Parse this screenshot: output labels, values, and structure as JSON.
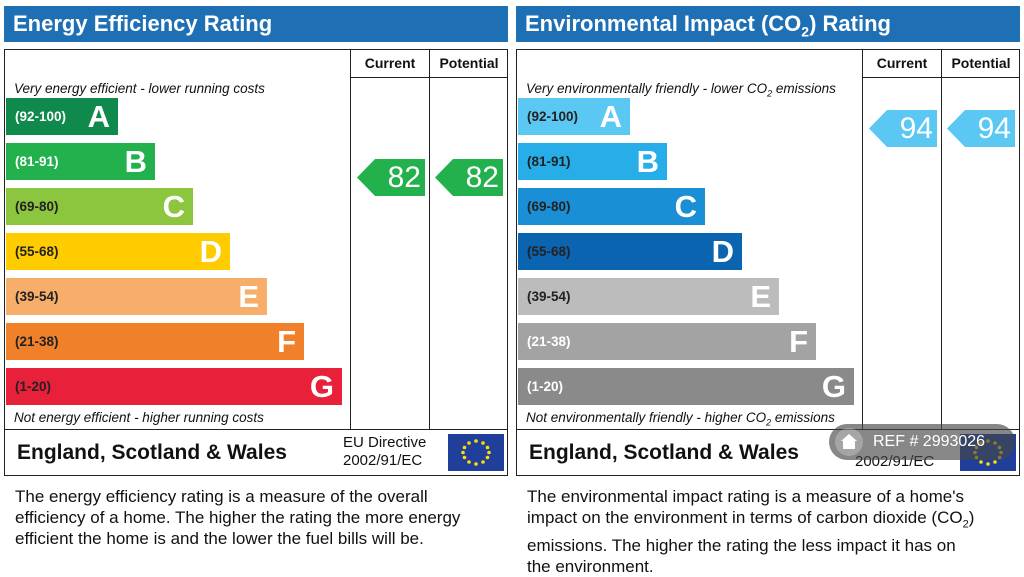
{
  "colors": {
    "title_bar": "#1f6fb4",
    "energy_bands": [
      "#0f8a4c",
      "#22b14c",
      "#8cc63f",
      "#ffcc00",
      "#f7ae6a",
      "#f0802a",
      "#e8203a"
    ],
    "env_bands": [
      "#5bc8f4",
      "#27aee8",
      "#1a8fd6",
      "#0b64b0",
      "#bcbcbc",
      "#a3a3a3",
      "#8a8a8a"
    ],
    "eu_flag": "#1f3f9a"
  },
  "energy": {
    "title": "Energy Efficiency Rating",
    "col_current": "Current",
    "col_potential": "Potential",
    "top_note": "Very energy efficient - lower running costs",
    "bottom_note": "Not energy efficient - higher running costs",
    "bands": [
      {
        "range": "(92-100)",
        "letter": "A"
      },
      {
        "range": "(81-91)",
        "letter": "B"
      },
      {
        "range": "(69-80)",
        "letter": "C"
      },
      {
        "range": "(55-68)",
        "letter": "D"
      },
      {
        "range": "(39-54)",
        "letter": "E"
      },
      {
        "range": "(21-38)",
        "letter": "F"
      },
      {
        "range": "(1-20)",
        "letter": "G"
      }
    ],
    "current": "82",
    "potential": "82",
    "current_band": "B",
    "potential_band": "B",
    "country": "England, Scotland & Wales",
    "directive_line1": "EU Directive",
    "directive_line2": "2002/91/EC",
    "description": "The energy efficiency rating is a measure of the overall efficiency of a home. The higher the rating the more energy efficient the home is and the lower the fuel bills will be."
  },
  "environment": {
    "title_pre": "Environmental Impact (CO",
    "title_sub": "2",
    "title_post": ") Rating",
    "col_current": "Current",
    "col_potential": "Potential",
    "top_note_pre": "Very environmentally friendly - lower CO",
    "top_note_sub": "2",
    "top_note_post": " emissions",
    "bottom_note_pre": "Not environmentally friendly - higher CO",
    "bottom_note_sub": "2",
    "bottom_note_post": " emissions",
    "bands": [
      {
        "range": "(92-100)",
        "letter": "A"
      },
      {
        "range": "(81-91)",
        "letter": "B"
      },
      {
        "range": "(69-80)",
        "letter": "C"
      },
      {
        "range": "(55-68)",
        "letter": "D"
      },
      {
        "range": "(39-54)",
        "letter": "E"
      },
      {
        "range": "(21-38)",
        "letter": "F"
      },
      {
        "range": "(1-20)",
        "letter": "G"
      }
    ],
    "current": "94",
    "potential": "94",
    "current_band": "A",
    "potential_band": "A",
    "country": "England, Scotland & Wales",
    "directive_line2": "2002/91/EC",
    "description_pre": "The environmental impact rating is a measure of a home's impact on the environment in terms of carbon dioxide (CO",
    "description_sub": "2",
    "description_post": ") emissions. The higher the rating the less impact it has on the environment."
  },
  "watermark": {
    "ref": "REF # 2993026",
    "icon": "home-icon"
  }
}
